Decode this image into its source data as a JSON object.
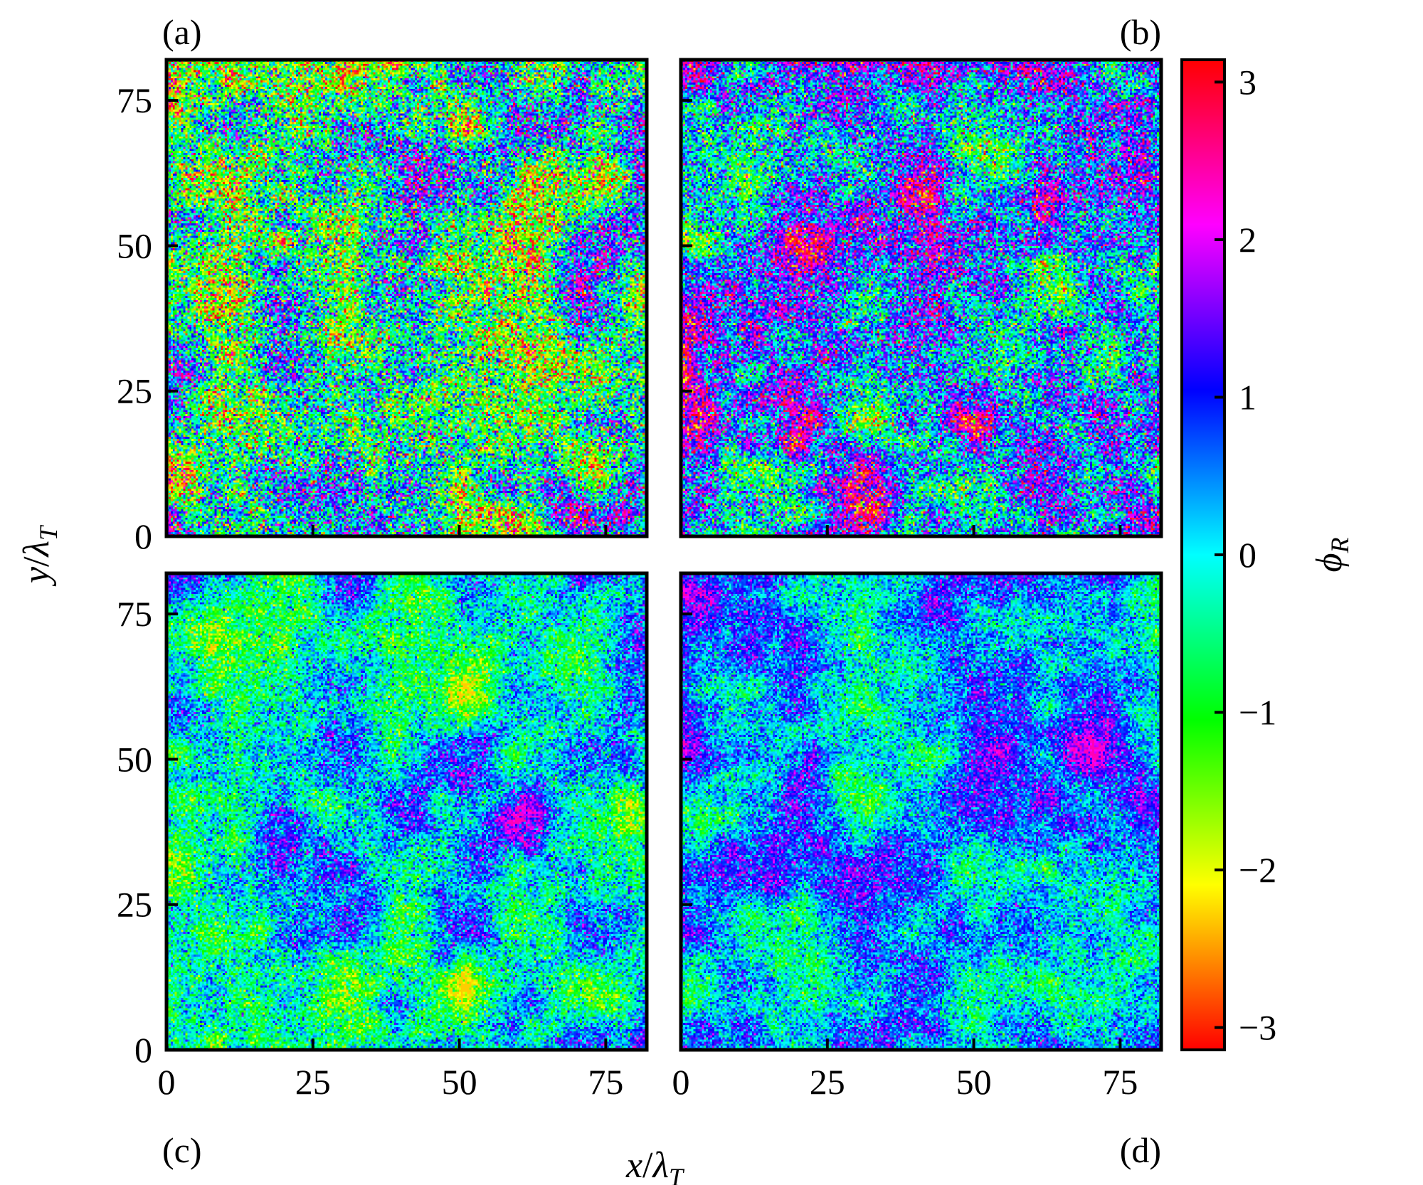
{
  "chart_data": [
    {
      "type": "heatmap",
      "panel_label": "(a)",
      "xlim": [
        0,
        82
      ],
      "ylim": [
        0,
        82
      ],
      "x_ticks": [
        0,
        25,
        50,
        75
      ],
      "y_ticks": [
        0,
        25,
        50,
        75
      ],
      "x_tick_labels_shown": false,
      "y_tick_labels_shown": true,
      "phase_character": "fully disordered, all phases equally present",
      "seed": 11,
      "spread": 1.0,
      "bias": -0.4,
      "amplitude": 2.0
    },
    {
      "type": "heatmap",
      "panel_label": "(b)",
      "xlim": [
        0,
        82
      ],
      "ylim": [
        0,
        82
      ],
      "x_ticks": [
        0,
        25,
        50,
        75
      ],
      "y_ticks": [
        0,
        25,
        50,
        75
      ],
      "x_tick_labels_shown": false,
      "y_tick_labels_shown": false,
      "phase_character": "disordered with blue-magenta and green domains",
      "seed": 23,
      "spread": 0.85,
      "bias": 0.5,
      "amplitude": 1.9
    },
    {
      "type": "heatmap",
      "panel_label": "(c)",
      "xlim": [
        0,
        82
      ],
      "ylim": [
        0,
        82
      ],
      "x_ticks": [
        0,
        25,
        50,
        75
      ],
      "y_ticks": [
        0,
        25,
        50,
        75
      ],
      "x_tick_labels_shown": true,
      "y_tick_labels_shown": true,
      "phase_character": "partially ordered, phases concentrated near -1 to 1",
      "seed": 37,
      "spread": 0.55,
      "bias": 0.05,
      "amplitude": 1.3
    },
    {
      "type": "heatmap",
      "panel_label": "(d)",
      "xlim": [
        0,
        82
      ],
      "ylim": [
        0,
        82
      ],
      "x_ticks": [
        0,
        25,
        50,
        75
      ],
      "y_ticks": [
        0,
        25,
        50,
        75
      ],
      "x_tick_labels_shown": true,
      "y_tick_labels_shown": false,
      "phase_character": "more ordered, phases concentrated near 0 to 1",
      "seed": 51,
      "spread": 0.5,
      "bias": 0.25,
      "amplitude": 1.2
    }
  ],
  "axes": {
    "xlabel_var": "x",
    "ylabel_var": "y",
    "label_denominator": "λ",
    "label_subscript": "T",
    "x_tick_labels": [
      "0",
      "25",
      "50",
      "75"
    ],
    "y_tick_labels": [
      "0",
      "25",
      "50",
      "75"
    ]
  },
  "colorbar": {
    "label_symbol": "ϕ",
    "label_subscript": "R",
    "range": [
      -3.14159,
      3.14159
    ],
    "ticks": [
      3,
      2,
      1,
      0,
      -1,
      -2,
      -3
    ],
    "tick_labels": [
      "3",
      "2",
      "1",
      "0",
      "−1",
      "−2",
      "−3"
    ],
    "colormap": "hsv",
    "colormap_stops": [
      "#ff0000",
      "#ffff00",
      "#00ff00",
      "#00ffff",
      "#0000ff",
      "#ff00ff",
      "#ff0000"
    ]
  }
}
